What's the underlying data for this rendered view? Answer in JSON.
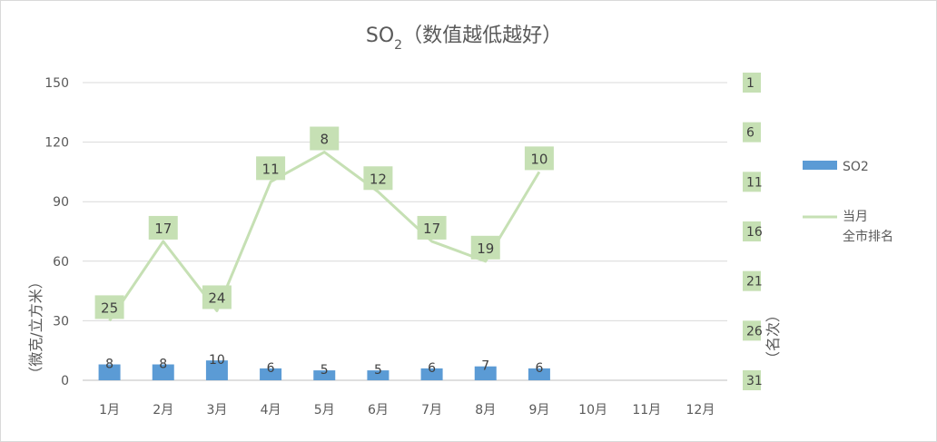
{
  "chart_data": {
    "type": "bar+line",
    "title": "SO",
    "title_sub": "2",
    "title_suffix": "（数值越低越好）",
    "categories": [
      "1月",
      "2月",
      "3月",
      "4月",
      "5月",
      "6月",
      "7月",
      "8月",
      "9月",
      "10月",
      "11月",
      "12月"
    ],
    "series": [
      {
        "name": "SO2",
        "type": "bar",
        "axis": "left",
        "color": "#5b9bd5",
        "values": [
          8,
          8,
          10,
          6,
          5,
          5,
          6,
          7,
          6,
          null,
          null,
          null
        ]
      },
      {
        "name": "当月\n全市排名",
        "type": "line",
        "axis": "right",
        "color": "#c6e0b4",
        "values": [
          25,
          17,
          24,
          11,
          8,
          12,
          17,
          19,
          10,
          null,
          null,
          null
        ]
      }
    ],
    "y_left": {
      "label": "（微克/立方米）",
      "ylim": [
        0,
        150
      ],
      "ticks": [
        "0",
        "30",
        "60",
        "90",
        "120",
        "150"
      ]
    },
    "y_right": {
      "label": "（名次）",
      "ylim": [
        31,
        1
      ],
      "reversed": true,
      "ticks": [
        "1",
        "6",
        "11",
        "16",
        "21",
        "26",
        "31"
      ]
    },
    "grid": true,
    "legend_position": "right"
  }
}
